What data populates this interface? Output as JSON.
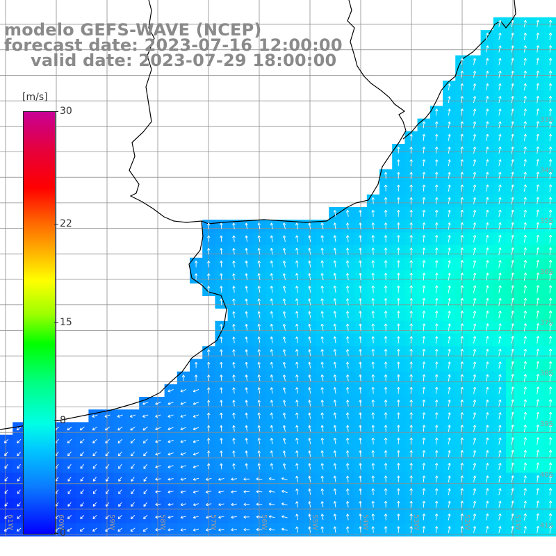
{
  "title": {
    "line1": "modelo GEFS-WAVE (NCEP)",
    "line2": "forecast date: 2023-07-16 12:00:00",
    "line3": "valid date: 2023-07-29 18:00:00"
  },
  "legend": {
    "units": "[m/s]",
    "ticks": [
      "30",
      "22",
      "15",
      "8",
      "0"
    ],
    "tick_values": [
      30,
      22,
      15,
      8,
      0
    ],
    "min": 0,
    "max": 30
  },
  "lat_labels": [
    "33S",
    "34S",
    "35S",
    "36S",
    "37S",
    "38S",
    "39S",
    "40S",
    "41S"
  ],
  "lon_labels": [
    "61W",
    "60W",
    "59W",
    "58W",
    "57W",
    "56W",
    "55W",
    "54W",
    "53W",
    "52W",
    "51W"
  ],
  "colors": {
    "land": "#ffffff",
    "coast": "#000000",
    "grid": "#8c8c8c",
    "arrow": "#ffffff",
    "title": "#8a8a8a"
  },
  "icons": {
    "wind-arrow": "vector arrow"
  }
}
